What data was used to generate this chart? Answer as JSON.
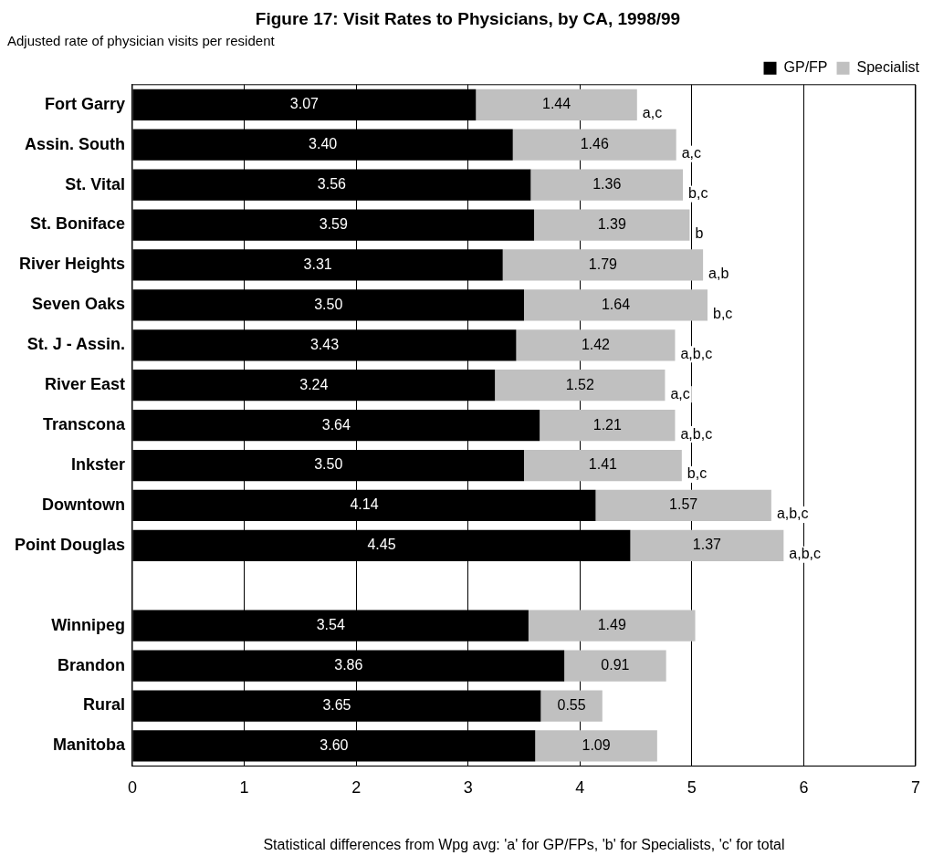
{
  "chart_data": {
    "type": "bar",
    "orientation": "horizontal",
    "stacked": true,
    "title": "Figure 17: Visit Rates to Physicians, by CA, 1998/99",
    "subtitle": "Adjusted rate of physician visits per resident",
    "categories": [
      "Fort Garry",
      "Assin. South",
      "St. Vital",
      "St. Boniface",
      "River Heights",
      "Seven Oaks",
      "St. J - Assin.",
      "River East",
      "Transcona",
      "Inkster",
      "Downtown",
      "Point Douglas",
      null,
      "Winnipeg",
      "Brandon",
      "Rural",
      "Manitoba"
    ],
    "series": [
      {
        "name": "GP/FP",
        "color": "#000000",
        "values": [
          3.07,
          3.4,
          3.56,
          3.59,
          3.31,
          3.5,
          3.43,
          3.24,
          3.64,
          3.5,
          4.14,
          4.45,
          null,
          3.54,
          3.86,
          3.65,
          3.6
        ],
        "value_labels": [
          "3.07",
          "3.40",
          "3.56",
          "3.59",
          "3.31",
          "3.50",
          "3.43",
          "3.24",
          "3.64",
          "3.50",
          "4.14",
          "4.45",
          null,
          "3.54",
          "3.86",
          "3.65",
          "3.60"
        ]
      },
      {
        "name": "Specialist",
        "color": "#c0c0c0",
        "values": [
          1.44,
          1.46,
          1.36,
          1.39,
          1.79,
          1.64,
          1.42,
          1.52,
          1.21,
          1.41,
          1.57,
          1.37,
          null,
          1.49,
          0.91,
          0.55,
          1.09
        ],
        "value_labels": [
          "1.44",
          "1.46",
          "1.36",
          "1.39",
          "1.79",
          "1.64",
          "1.42",
          "1.52",
          "1.21",
          "1.41",
          "1.57",
          "1.37",
          null,
          "1.49",
          "0.91",
          "0.55",
          "1.09"
        ]
      }
    ],
    "xlim": [
      0,
      7
    ],
    "xticks": [
      0,
      1,
      2,
      3,
      4,
      5,
      6,
      7
    ],
    "grid": "x",
    "legend": "top right",
    "annotations": [
      {
        "text": "a,c",
        "x": 4.51,
        "y": "Fort Garry"
      },
      {
        "text": "a,c",
        "x": 4.86,
        "y": "Assin. South"
      },
      {
        "text": "b,c",
        "x": 4.92,
        "y": "St. Vital"
      },
      {
        "text": "b",
        "x": 4.98,
        "y": "St. Boniface"
      },
      {
        "text": "a,b",
        "x": 5.1,
        "y": "River Heights"
      },
      {
        "text": "b,c",
        "x": 5.14,
        "y": "Seven Oaks"
      },
      {
        "text": "a,b,c",
        "x": 4.85,
        "y": "St. J - Assin."
      },
      {
        "text": "a,c",
        "x": 4.76,
        "y": "River East"
      },
      {
        "text": "a,b,c",
        "x": 4.85,
        "y": "Transcona"
      },
      {
        "text": "b,c",
        "x": 4.91,
        "y": "Inkster"
      },
      {
        "text": "a,b,c",
        "x": 5.71,
        "y": "Downtown"
      },
      {
        "text": "a,b,c",
        "x": 5.82,
        "y": "Point Douglas"
      },
      "Statistical differences from Wpg avg: 'a' for GP/FPs, 'b' for Specialists, 'c' for total"
    ]
  }
}
